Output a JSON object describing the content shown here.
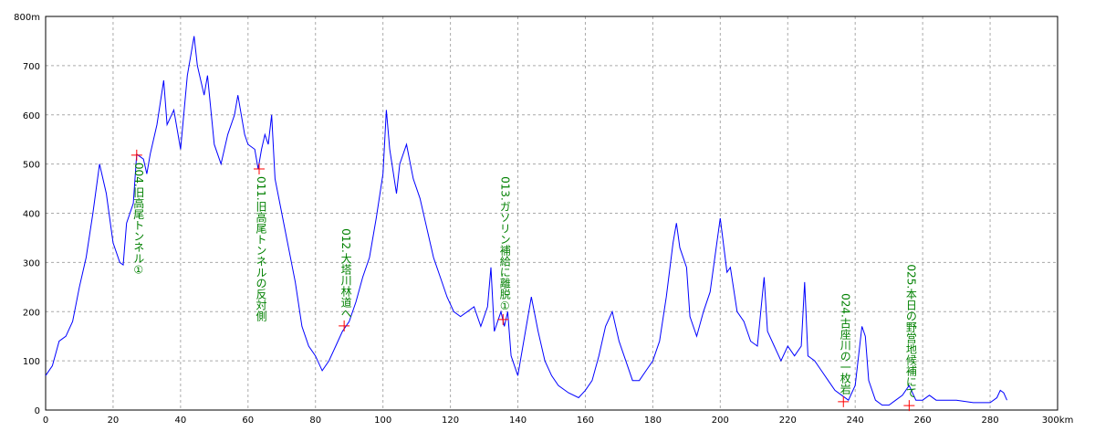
{
  "chart_data": {
    "type": "line",
    "x": [
      0,
      2,
      4,
      6,
      8,
      10,
      12,
      14,
      16,
      18,
      20,
      22,
      23,
      24,
      26,
      27,
      29,
      30,
      31,
      33,
      35,
      36,
      38,
      40,
      42,
      44,
      45,
      47,
      48,
      50,
      52,
      54,
      56,
      57,
      59,
      60,
      62,
      63,
      64,
      65,
      66,
      67,
      68,
      70,
      72,
      74,
      76,
      78,
      80,
      82,
      84,
      86,
      88,
      90,
      92,
      94,
      96,
      98,
      100,
      101,
      102,
      104,
      105,
      107,
      109,
      111,
      113,
      115,
      117,
      119,
      121,
      123,
      125,
      127,
      129,
      131,
      132,
      133,
      135,
      136,
      137,
      138,
      140,
      142,
      144,
      146,
      148,
      150,
      152,
      155,
      158,
      160,
      162,
      164,
      166,
      168,
      170,
      172,
      174,
      176,
      178,
      180,
      182,
      184,
      186,
      187,
      188,
      190,
      191,
      193,
      195,
      197,
      199,
      200,
      202,
      203,
      205,
      207,
      209,
      211,
      213,
      214,
      216,
      218,
      220,
      222,
      224,
      225,
      226,
      228,
      230,
      232,
      234,
      236,
      238,
      240,
      242,
      243,
      244,
      246,
      248,
      250,
      252,
      254,
      256,
      258,
      260,
      262,
      264,
      266,
      270,
      275,
      280,
      282,
      283,
      284,
      285
    ],
    "values": [
      70,
      90,
      140,
      150,
      180,
      250,
      310,
      400,
      500,
      440,
      340,
      300,
      295,
      380,
      420,
      520,
      510,
      480,
      520,
      580,
      670,
      580,
      610,
      530,
      680,
      760,
      700,
      640,
      680,
      540,
      500,
      560,
      600,
      640,
      560,
      540,
      530,
      490,
      530,
      560,
      540,
      600,
      470,
      400,
      330,
      260,
      170,
      130,
      110,
      80,
      100,
      130,
      160,
      180,
      220,
      270,
      310,
      390,
      480,
      610,
      530,
      440,
      500,
      540,
      470,
      430,
      370,
      310,
      270,
      230,
      200,
      190,
      200,
      210,
      170,
      210,
      290,
      160,
      200,
      170,
      200,
      110,
      70,
      150,
      230,
      160,
      100,
      70,
      50,
      35,
      25,
      40,
      60,
      110,
      170,
      200,
      140,
      100,
      60,
      60,
      80,
      100,
      140,
      230,
      340,
      380,
      330,
      290,
      190,
      150,
      200,
      240,
      340,
      390,
      280,
      290,
      200,
      180,
      140,
      130,
      270,
      160,
      130,
      100,
      130,
      110,
      130,
      260,
      110,
      100,
      80,
      60,
      40,
      30,
      20,
      50,
      170,
      150,
      60,
      20,
      10,
      10,
      20,
      30,
      50,
      20,
      20,
      30,
      20,
      20,
      20,
      15,
      15,
      25,
      40,
      35,
      20
    ],
    "color": "#0000ff",
    "xlim": [
      0,
      300
    ],
    "xticks": [
      0,
      20,
      40,
      60,
      80,
      100,
      120,
      140,
      160,
      180,
      200,
      220,
      240,
      260,
      280,
      {
        "value": 300,
        "label": "300km"
      }
    ],
    "ylim": [
      0,
      800
    ],
    "yticks": [
      0,
      100,
      200,
      300,
      400,
      500,
      600,
      700,
      {
        "value": 800,
        "label": "800m"
      }
    ],
    "grid": true,
    "annotations": [
      {
        "x": 27,
        "y": 518,
        "text": "004.旧高尾トンネル①"
      },
      {
        "x": 63.3,
        "y": 490,
        "text": "011.旧高尾トンネルの反対側"
      },
      {
        "x": 88.5,
        "y": 171,
        "text": "012.大塔川林道へ"
      },
      {
        "x": 135.6,
        "y": 184,
        "text": "013.ガソリン補給に離脱①"
      },
      {
        "x": 236.5,
        "y": 17,
        "text": "024.古座川の一枚岩"
      },
      {
        "x": 256,
        "y": 9,
        "text": "025.本日の野営地候補にて"
      }
    ]
  }
}
